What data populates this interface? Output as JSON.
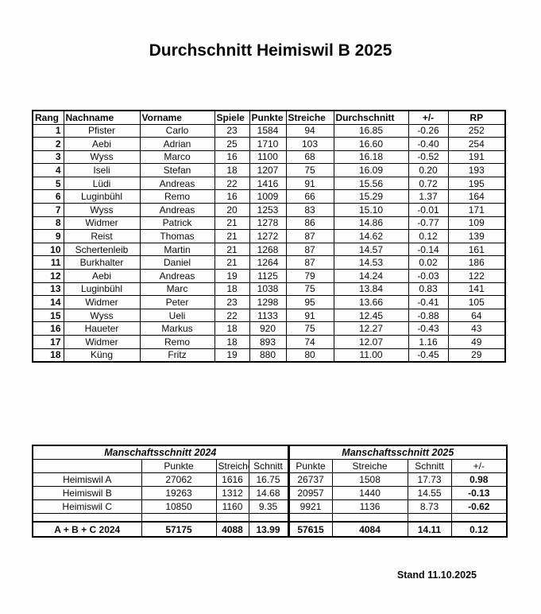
{
  "title": "Durchschnitt Heimiswil B 2025",
  "stand_label": "Stand 11.10.2025",
  "main_table": {
    "headers": [
      "Rang",
      "Nachname",
      "Vorname",
      "Spiele",
      "Punkte",
      "Streiche",
      "Durchschnitt",
      "+/-",
      "RP"
    ],
    "rows": [
      [
        "1",
        "Pfister",
        "Carlo",
        "23",
        "1584",
        "94",
        "16.85",
        "-0.26",
        "252"
      ],
      [
        "2",
        "Aebi",
        "Adrian",
        "25",
        "1710",
        "103",
        "16.60",
        "-0.40",
        "254"
      ],
      [
        "3",
        "Wyss",
        "Marco",
        "16",
        "1100",
        "68",
        "16.18",
        "-0.52",
        "191"
      ],
      [
        "4",
        "Iseli",
        "Stefan",
        "18",
        "1207",
        "75",
        "16.09",
        "0.20",
        "193"
      ],
      [
        "5",
        "Lüdi",
        "Andreas",
        "22",
        "1416",
        "91",
        "15.56",
        "0.72",
        "195"
      ],
      [
        "6",
        "Luginbühl",
        "Remo",
        "16",
        "1009",
        "66",
        "15.29",
        "1.37",
        "164"
      ],
      [
        "7",
        "Wyss",
        "Andreas",
        "20",
        "1253",
        "83",
        "15.10",
        "-0.01",
        "171"
      ],
      [
        "8",
        "Widmer",
        "Patrick",
        "21",
        "1278",
        "86",
        "14.86",
        "-0.77",
        "109"
      ],
      [
        "9",
        "Reist",
        "Thomas",
        "21",
        "1272",
        "87",
        "14.62",
        "0.12",
        "139"
      ],
      [
        "10",
        "Schertenleib",
        "Martin",
        "21",
        "1268",
        "87",
        "14.57",
        "-0.14",
        "161"
      ],
      [
        "11",
        "Burkhalter",
        "Daniel",
        "21",
        "1264",
        "87",
        "14.53",
        "0.02",
        "186"
      ],
      [
        "12",
        "Aebi",
        "Andreas",
        "19",
        "1125",
        "79",
        "14.24",
        "-0.03",
        "122"
      ],
      [
        "13",
        "Luginbühl",
        "Marc",
        "18",
        "1038",
        "75",
        "13.84",
        "0.83",
        "141"
      ],
      [
        "14",
        "Widmer",
        "Peter",
        "23",
        "1298",
        "95",
        "13.66",
        "-0.41",
        "105"
      ],
      [
        "15",
        "Wyss",
        "Ueli",
        "22",
        "1133",
        "91",
        "12.45",
        "-0.88",
        "64"
      ],
      [
        "16",
        "Haueter",
        "Markus",
        "18",
        "920",
        "75",
        "12.27",
        "-0.43",
        "43"
      ],
      [
        "17",
        "Widmer",
        "Remo",
        "18",
        "893",
        "74",
        "12.07",
        "1.16",
        "49"
      ],
      [
        "18",
        "Küng",
        "Fritz",
        "19",
        "880",
        "80",
        "11.00",
        "-0.45",
        "29"
      ]
    ]
  },
  "team_table": {
    "section_headers": [
      "Manschaftsschnitt 2024",
      "Manschaftsschnitt 2025"
    ],
    "column_headers": [
      "",
      "Punkte",
      "Streiche",
      "Schnitt",
      "Punkte",
      "Streiche",
      "Schnitt",
      "+/-"
    ],
    "rows": [
      [
        "Heimiswil A",
        "27062",
        "1616",
        "16.75",
        "26737",
        "1508",
        "17.73",
        "0.98"
      ],
      [
        "Heimiswil B",
        "19263",
        "1312",
        "14.68",
        "20957",
        "1440",
        "14.55",
        "-0.13"
      ],
      [
        "Heimiswil C",
        "10850",
        "1160",
        "9.35",
        "9921",
        "1136",
        "8.73",
        "-0.62"
      ],
      [
        "",
        "",
        "",
        "",
        "",
        "",
        "",
        ""
      ],
      [
        "A + B + C  2024",
        "57175",
        "4088",
        "13.99",
        "57615",
        "4084",
        "14.11",
        "0.12"
      ]
    ]
  }
}
